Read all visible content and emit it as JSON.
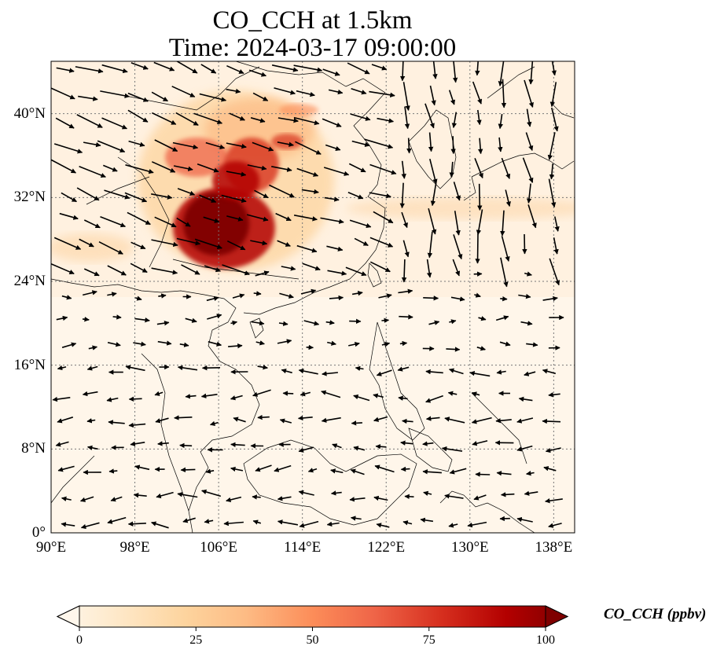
{
  "title_line1": "CO_CCH at 1.5km",
  "title_line2": "Time: 2024-03-17 09:00:00",
  "map": {
    "lon_range": [
      90,
      140
    ],
    "lat_range": [
      0,
      45
    ],
    "lat_ticks": [
      {
        "value": 40,
        "label": "40°N"
      },
      {
        "value": 32,
        "label": "32°N"
      },
      {
        "value": 24,
        "label": "24°N"
      },
      {
        "value": 16,
        "label": "16°N"
      },
      {
        "value": 8,
        "label": "8°N"
      },
      {
        "value": 0,
        "label": "0°"
      }
    ],
    "lon_ticks": [
      {
        "value": 90,
        "label": "90°E"
      },
      {
        "value": 98,
        "label": "98°E"
      },
      {
        "value": 106,
        "label": "106°E"
      },
      {
        "value": 114,
        "label": "114°E"
      },
      {
        "value": 122,
        "label": "122°E"
      },
      {
        "value": 130,
        "label": "130°E"
      },
      {
        "value": 138,
        "label": "138°E"
      }
    ],
    "gridlines": "dotted",
    "wind_vectors": "black arrows"
  },
  "colorbar": {
    "label": "CO_CCH (ppbv)",
    "min": 0,
    "max": 100,
    "extend": "both",
    "colormap": "OrRd",
    "ticks": [
      "0",
      "25",
      "50",
      "75",
      "100"
    ],
    "colors": [
      "#fff7ec",
      "#fee8c8",
      "#fdd49e",
      "#fdbb84",
      "#fc8d59",
      "#ef6548",
      "#d7301f",
      "#b30000",
      "#7f0000"
    ]
  }
}
